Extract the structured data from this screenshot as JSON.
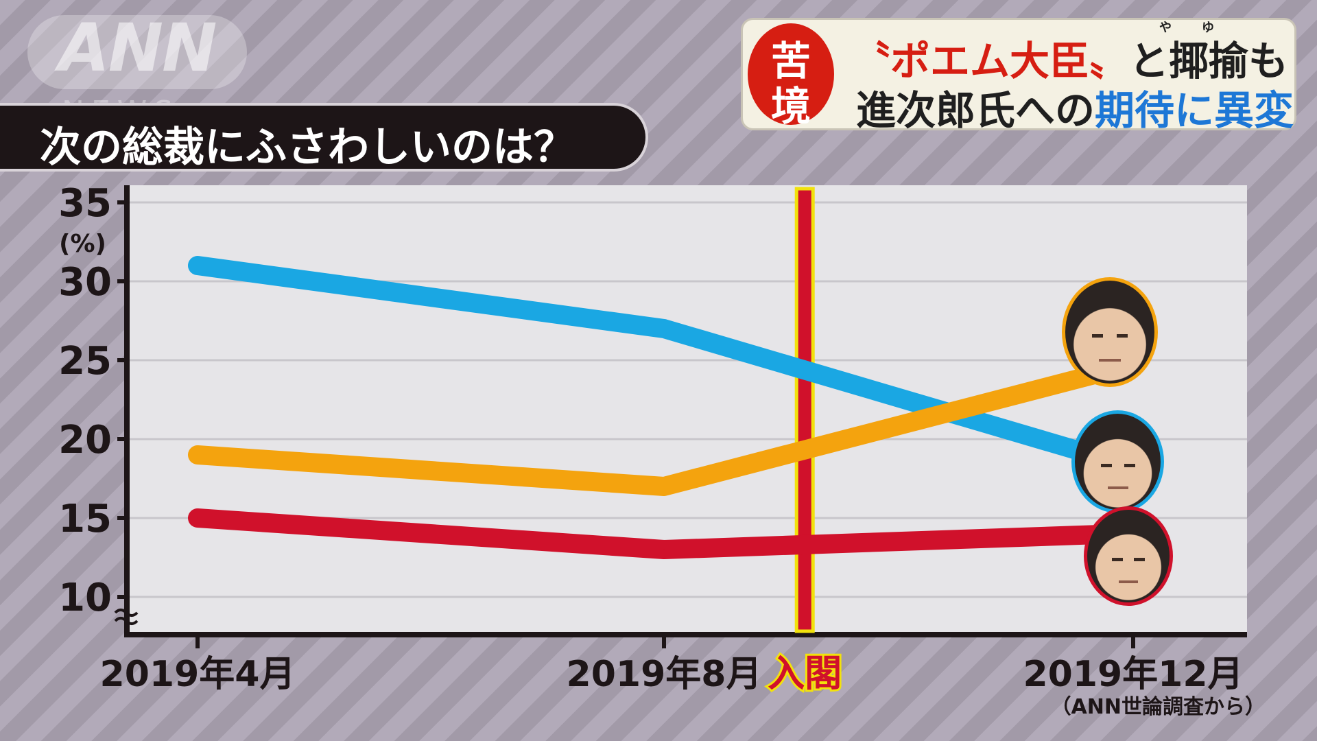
{
  "logo": {
    "brand": "ANN",
    "sub": "NEWS"
  },
  "question": "次の総裁にふさわしいのは？",
  "headline": {
    "badge_top": "苦",
    "badge_bottom": "境",
    "line1_quoted": "〝ポエム大臣〟",
    "line1_rest": "と揶揄も",
    "ruby_ya": "や",
    "ruby_yu": "ゆ",
    "line2_black": "進次郎氏への",
    "line2_blue": "期待に異変"
  },
  "event_label": "入閣",
  "source_note": "（ANN世論調査から）",
  "colors": {
    "blue": "#1aa7e3",
    "orange": "#f4a30e",
    "red": "#d0112b",
    "event_yellow": "#f2e20c"
  },
  "chart_data": {
    "type": "line",
    "title": "次の総裁にふさわしいのは？",
    "ylabel": "(%)",
    "xlabel": "",
    "categories": [
      "2019年4月",
      "2019年8月",
      "2019年12月"
    ],
    "ylim": [
      10,
      35
    ],
    "yticks": [
      10,
      15,
      20,
      25,
      30,
      35
    ],
    "axis_break": true,
    "grid": true,
    "series": [
      {
        "color": "#1aa7e3",
        "values": [
          31,
          27,
          18.5
        ],
        "face": "koizumi"
      },
      {
        "color": "#f4a30e",
        "values": [
          19,
          17,
          24.5
        ],
        "face": "ishiba"
      },
      {
        "color": "#d0112b",
        "values": [
          15,
          13,
          14
        ],
        "face": "abe"
      }
    ],
    "event": {
      "label": "入閣",
      "x_fraction_between_aug_dec": 0.3
    }
  }
}
